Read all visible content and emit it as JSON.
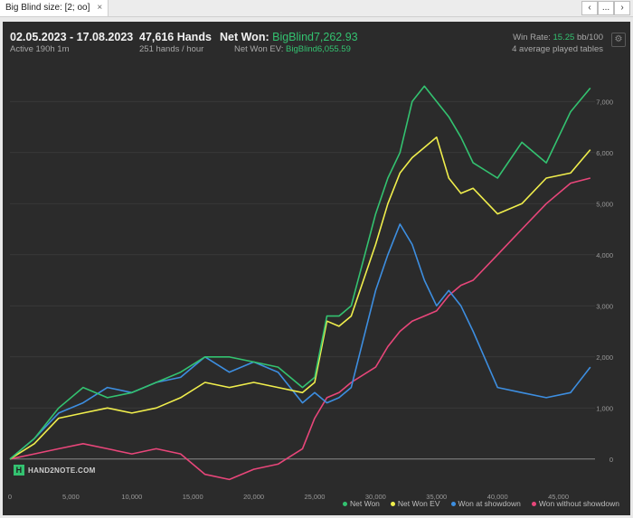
{
  "tab": {
    "title": "Big Blind size: [2; oo]",
    "close": "×"
  },
  "nav": {
    "back": "‹",
    "more": "...",
    "next": "›"
  },
  "header": {
    "date_range": "02.05.2023 - 17.08.2023",
    "active": "Active 190h 1m",
    "hands": "47,616 Hands",
    "hands_rate": "251 hands / hour",
    "net_won_label": "Net Won:",
    "net_won_value": "BigBlind7,262.93",
    "net_won_ev_label": "Net Won  EV:",
    "net_won_ev_value": "BigBlind6,055.59",
    "win_rate_label": "Win Rate:",
    "win_rate_value": "15.25",
    "win_rate_unit": "bb/100",
    "tables": "4 average played tables",
    "settings_icon": "gear-icon"
  },
  "logo": {
    "mark": "H",
    "text": "HAND2NOTE.COM"
  },
  "colors": {
    "net_won": "#33c270",
    "net_won_ev": "#f0ee4c",
    "won_showdown": "#3d8ee0",
    "won_no_showdown": "#e8467a"
  },
  "chart_data": {
    "type": "line",
    "xlim": [
      0,
      48000
    ],
    "ylim": [
      -500,
      7500
    ],
    "x_ticks": [
      0,
      5000,
      10000,
      15000,
      20000,
      25000,
      30000,
      35000,
      40000,
      45000
    ],
    "x_tick_labels": [
      "0",
      "5,000",
      "10,000",
      "15,000",
      "20,000",
      "25,000",
      "30,000",
      "35,000",
      "40,000",
      "45,000"
    ],
    "y_ticks": [
      0,
      1000,
      2000,
      3000,
      4000,
      5000,
      6000,
      7000
    ],
    "y_tick_labels": [
      "0",
      "1,000",
      "2,000",
      "3,000",
      "4,000",
      "5,000",
      "6,000",
      "7,000"
    ],
    "grid": true,
    "legend_position": "bottom-right",
    "x": [
      0,
      2000,
      4000,
      6000,
      8000,
      10000,
      12000,
      14000,
      16000,
      18000,
      20000,
      22000,
      24000,
      25000,
      26000,
      27000,
      28000,
      30000,
      31000,
      32000,
      33000,
      34000,
      35000,
      36000,
      37000,
      38000,
      40000,
      42000,
      44000,
      46000,
      47616
    ],
    "series": [
      {
        "name": "Net Won",
        "color": "#33c270",
        "values": [
          0,
          400,
          1000,
          1400,
          1200,
          1300,
          1500,
          1700,
          2000,
          2000,
          1900,
          1800,
          1400,
          1600,
          2800,
          2800,
          3000,
          4800,
          5500,
          6000,
          7000,
          7300,
          7000,
          6700,
          6300,
          5800,
          5500,
          6200,
          5800,
          6800,
          7262.93
        ]
      },
      {
        "name": "Net Won  EV",
        "color": "#f0ee4c",
        "values": [
          0,
          300,
          800,
          900,
          1000,
          900,
          1000,
          1200,
          1500,
          1400,
          1500,
          1400,
          1300,
          1500,
          2700,
          2600,
          2800,
          4200,
          5000,
          5600,
          5900,
          6100,
          6300,
          5500,
          5200,
          5300,
          4800,
          5000,
          5500,
          5600,
          6055.59
        ]
      },
      {
        "name": "Won at showdown",
        "color": "#3d8ee0",
        "values": [
          0,
          400,
          900,
          1100,
          1400,
          1300,
          1500,
          1600,
          2000,
          1700,
          1900,
          1700,
          1100,
          1300,
          1100,
          1200,
          1400,
          3300,
          4000,
          4600,
          4200,
          3500,
          3000,
          3300,
          3000,
          2500,
          1400,
          1300,
          1200,
          1300,
          1800
        ]
      },
      {
        "name": "Won without showdown",
        "color": "#e8467a",
        "values": [
          0,
          100,
          200,
          300,
          200,
          100,
          200,
          100,
          -300,
          -400,
          -200,
          -100,
          200,
          800,
          1200,
          1300,
          1500,
          1800,
          2200,
          2500,
          2700,
          2800,
          2900,
          3200,
          3400,
          3500,
          4000,
          4500,
          5000,
          5400,
          5500
        ]
      }
    ]
  }
}
